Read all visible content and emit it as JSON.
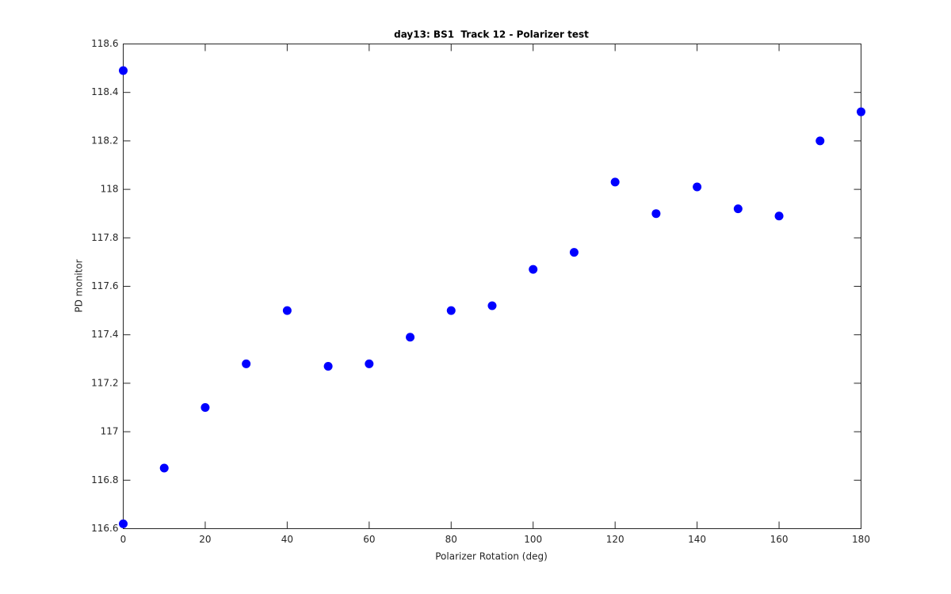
{
  "chart_data": {
    "type": "scatter",
    "title": "day13: BS1  Track 12 - Polarizer test",
    "xlabel": "Polarizer Rotation (deg)",
    "ylabel": "PD monitor",
    "x": [
      0,
      0,
      10,
      20,
      30,
      40,
      50,
      60,
      70,
      80,
      90,
      100,
      110,
      120,
      130,
      140,
      150,
      160,
      170,
      180
    ],
    "values": [
      118.49,
      116.62,
      116.85,
      117.1,
      117.28,
      117.5,
      117.27,
      117.28,
      117.39,
      117.5,
      117.52,
      117.67,
      117.74,
      118.03,
      117.9,
      118.01,
      117.92,
      117.89,
      118.2,
      118.32
    ],
    "color": "#0000ff",
    "xlim": [
      0,
      180
    ],
    "xticks": [
      0,
      20,
      40,
      60,
      80,
      100,
      120,
      140,
      160,
      180
    ],
    "ylim": [
      116.6,
      118.6
    ],
    "yticks": [
      116.6,
      116.8,
      117,
      117.2,
      117.4,
      117.6,
      117.8,
      118,
      118.2,
      118.4,
      118.6
    ],
    "grid": false
  }
}
